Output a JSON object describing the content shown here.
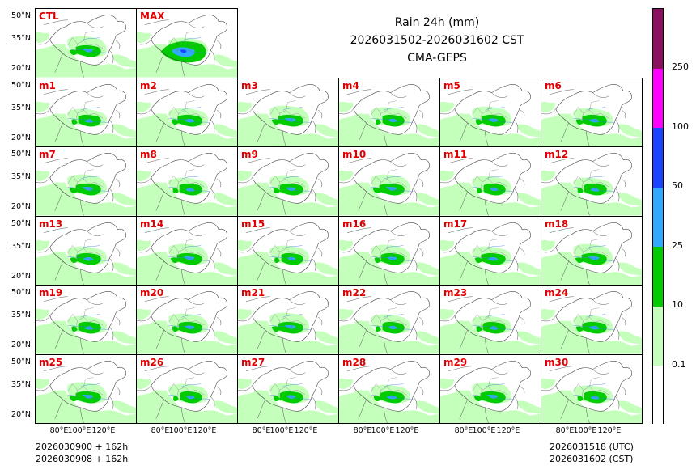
{
  "title": {
    "line1": "Rain 24h (mm)",
    "line2": "2026031502-2026031602 CST",
    "line3": "CMA-GEPS"
  },
  "panels": [
    "CTL",
    "MAX",
    "m1",
    "m2",
    "m3",
    "m4",
    "m5",
    "m6",
    "m7",
    "m8",
    "m9",
    "m10",
    "m11",
    "m12",
    "m13",
    "m14",
    "m15",
    "m16",
    "m17",
    "m18",
    "m19",
    "m20",
    "m21",
    "m22",
    "m23",
    "m24",
    "m25",
    "m26",
    "m27",
    "m28",
    "m29",
    "m30"
  ],
  "y_ticks": [
    "50°N",
    "35°N",
    "20°N"
  ],
  "x_ticks": [
    "80°E",
    "100°E",
    "120°E"
  ],
  "colorbar": {
    "levels": [
      "0.1",
      "10",
      "25",
      "50",
      "100",
      "250"
    ],
    "colors": [
      "#ffffff",
      "#c4ffbc",
      "#00cc00",
      "#30aaff",
      "#1a44ff",
      "#ff00ff",
      "#8b1060"
    ]
  },
  "footer": {
    "left_line1": "2026030900 + 162h",
    "left_line2": "2026030908 + 162h",
    "right_line1": "2026031518 (UTC)",
    "right_line2": "2026031602 (CST)"
  }
}
